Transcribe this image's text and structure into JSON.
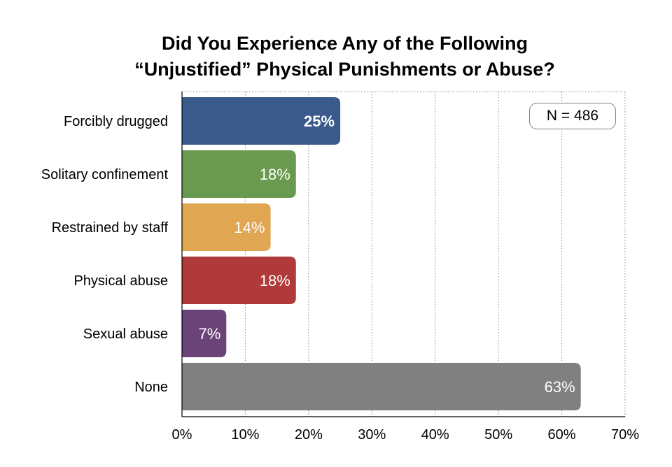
{
  "chart_data": {
    "type": "bar",
    "orientation": "horizontal",
    "title_lines": [
      "Did You Experience Any of the Following",
      "“Unjustified” Physical Punishments or Abuse?"
    ],
    "categories": [
      "Forcibly drugged",
      "Solitary confinement",
      "Restrained by staff",
      "Physical abuse",
      "Sexual abuse",
      "None"
    ],
    "values": [
      25,
      18,
      14,
      18,
      7,
      63
    ],
    "value_labels": [
      "25%",
      "18%",
      "14%",
      "18%",
      "7%",
      "63%"
    ],
    "colors": [
      "#3a5a8c",
      "#6a9a50",
      "#e0a652",
      "#b0393a",
      "#6a4378",
      "#7f807f"
    ],
    "xlim": [
      0,
      70
    ],
    "x_ticks": [
      "0%",
      "10%",
      "20%",
      "30%",
      "40%",
      "50%",
      "60%",
      "70%"
    ],
    "grid": "vertical dotted",
    "annotation": "N = 486"
  }
}
